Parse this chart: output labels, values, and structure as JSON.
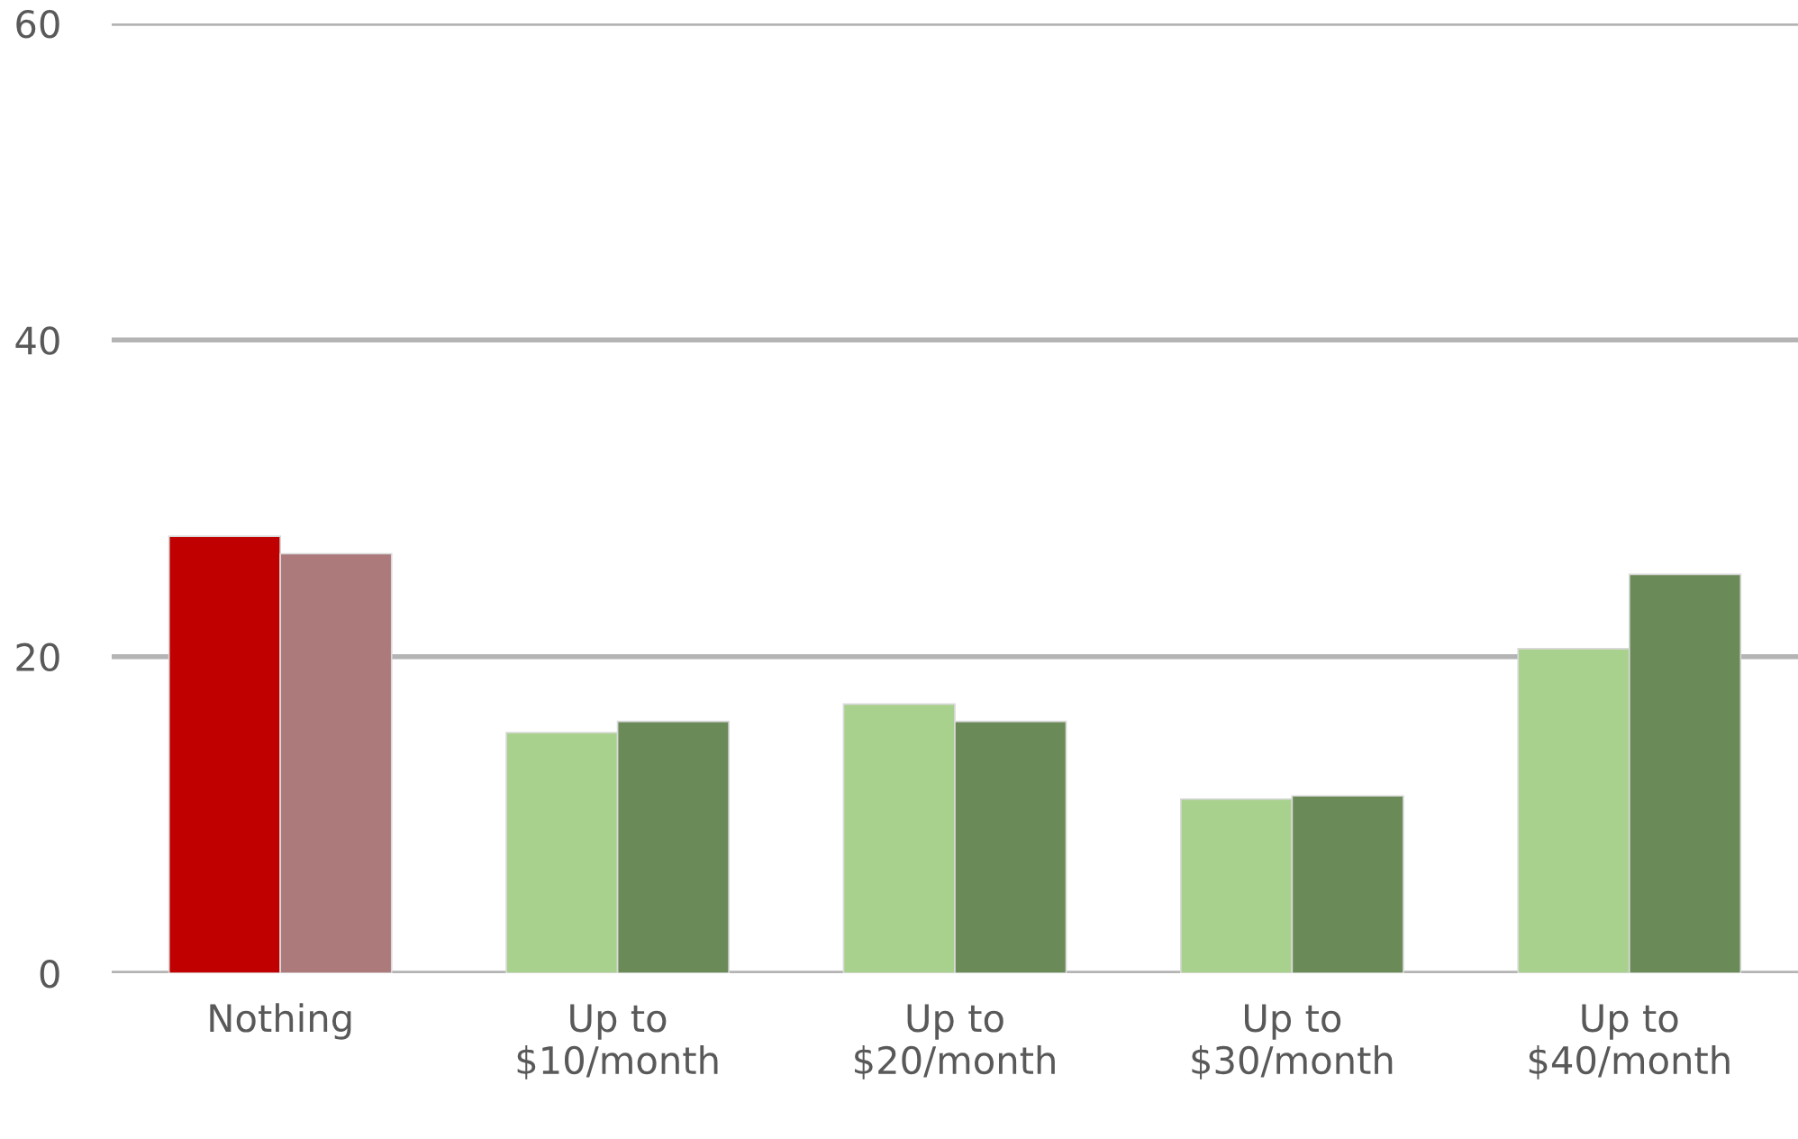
{
  "chart_data": {
    "type": "bar",
    "categories": [
      "Nothing",
      "Up to\n$10/month",
      "Up to\n$20/month",
      "Up to\n$30/month",
      "Up to\n$40/month"
    ],
    "series": [
      {
        "colors": [
          "#c00000",
          "#a9d18e",
          "#a9d18e",
          "#a9d18e",
          "#a9d18e"
        ],
        "values": [
          27.6,
          15.2,
          17.0,
          11.0,
          20.5
        ]
      },
      {
        "colors": [
          "#ad7a7c",
          "#6a8a57",
          "#6a8a57",
          "#6a8a57",
          "#6a8a57"
        ],
        "values": [
          26.5,
          15.9,
          15.9,
          11.2,
          25.2
        ]
      }
    ],
    "ylim": [
      0,
      60
    ],
    "yticks": [
      0,
      20,
      40,
      60
    ],
    "grid": "y"
  }
}
